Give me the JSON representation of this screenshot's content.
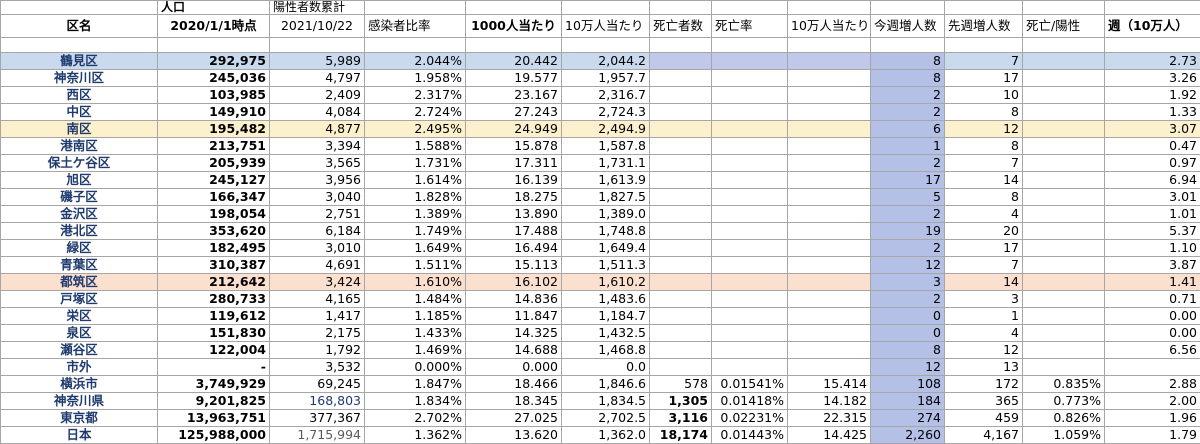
{
  "header_top": {
    "population": "人口",
    "positive": "陽性者数累計"
  },
  "header": {
    "ward": "区名",
    "pop_date": "2020/1/1時点",
    "pos_date": "2021/10/22",
    "rate": "感染者比率",
    "per1000": "1000人当たり",
    "per100k": "10万人当たり",
    "deaths": "死亡者数",
    "death_rate": "死亡率",
    "death_per100k": "10万人当たり",
    "this_week": "今週増人数",
    "last_week": "先週増人数",
    "death_pos": "死亡/陽性",
    "week_100k": "週（10万人）"
  },
  "rows": [
    {
      "name": "鶴見区",
      "pop": "292,975",
      "pos": "5,989",
      "rate": "2.044%",
      "p1000": "20.442",
      "p100k": "2,044.2",
      "deaths": "",
      "drate": "",
      "d100k": "",
      "tw": "8",
      "lw": "7",
      "dp": "",
      "w": "2.73"
    },
    {
      "name": "神奈川区",
      "pop": "245,036",
      "pos": "4,797",
      "rate": "1.958%",
      "p1000": "19.577",
      "p100k": "1,957.7",
      "deaths": "",
      "drate": "",
      "d100k": "",
      "tw": "8",
      "lw": "17",
      "dp": "",
      "w": "3.26"
    },
    {
      "name": "西区",
      "pop": "103,985",
      "pos": "2,409",
      "rate": "2.317%",
      "p1000": "23.167",
      "p100k": "2,316.7",
      "deaths": "",
      "drate": "",
      "d100k": "",
      "tw": "2",
      "lw": "10",
      "dp": "",
      "w": "1.92"
    },
    {
      "name": "中区",
      "pop": "149,910",
      "pos": "4,084",
      "rate": "2.724%",
      "p1000": "27.243",
      "p100k": "2,724.3",
      "deaths": "",
      "drate": "",
      "d100k": "",
      "tw": "2",
      "lw": "8",
      "dp": "",
      "w": "1.33"
    },
    {
      "name": "南区",
      "pop": "195,482",
      "pos": "4,877",
      "rate": "2.495%",
      "p1000": "24.949",
      "p100k": "2,494.9",
      "deaths": "",
      "drate": "",
      "d100k": "",
      "tw": "6",
      "lw": "12",
      "dp": "",
      "w": "3.07"
    },
    {
      "name": "港南区",
      "pop": "213,751",
      "pos": "3,394",
      "rate": "1.588%",
      "p1000": "15.878",
      "p100k": "1,587.8",
      "deaths": "",
      "drate": "",
      "d100k": "",
      "tw": "1",
      "lw": "8",
      "dp": "",
      "w": "0.47"
    },
    {
      "name": "保土ケ谷区",
      "pop": "205,939",
      "pos": "3,565",
      "rate": "1.731%",
      "p1000": "17.311",
      "p100k": "1,731.1",
      "deaths": "",
      "drate": "",
      "d100k": "",
      "tw": "2",
      "lw": "7",
      "dp": "",
      "w": "0.97"
    },
    {
      "name": "旭区",
      "pop": "245,127",
      "pos": "3,956",
      "rate": "1.614%",
      "p1000": "16.139",
      "p100k": "1,613.9",
      "deaths": "",
      "drate": "",
      "d100k": "",
      "tw": "17",
      "lw": "14",
      "dp": "",
      "w": "6.94"
    },
    {
      "name": "磯子区",
      "pop": "166,347",
      "pos": "3,040",
      "rate": "1.828%",
      "p1000": "18.275",
      "p100k": "1,827.5",
      "deaths": "",
      "drate": "",
      "d100k": "",
      "tw": "5",
      "lw": "8",
      "dp": "",
      "w": "3.01"
    },
    {
      "name": "金沢区",
      "pop": "198,054",
      "pos": "2,751",
      "rate": "1.389%",
      "p1000": "13.890",
      "p100k": "1,389.0",
      "deaths": "",
      "drate": "",
      "d100k": "",
      "tw": "2",
      "lw": "4",
      "dp": "",
      "w": "1.01"
    },
    {
      "name": "港北区",
      "pop": "353,620",
      "pos": "6,184",
      "rate": "1.749%",
      "p1000": "17.488",
      "p100k": "1,748.8",
      "deaths": "",
      "drate": "",
      "d100k": "",
      "tw": "19",
      "lw": "20",
      "dp": "",
      "w": "5.37"
    },
    {
      "name": "緑区",
      "pop": "182,495",
      "pos": "3,010",
      "rate": "1.649%",
      "p1000": "16.494",
      "p100k": "1,649.4",
      "deaths": "",
      "drate": "",
      "d100k": "",
      "tw": "2",
      "lw": "17",
      "dp": "",
      "w": "1.10"
    },
    {
      "name": "青葉区",
      "pop": "310,387",
      "pos": "4,691",
      "rate": "1.511%",
      "p1000": "15.113",
      "p100k": "1,511.3",
      "deaths": "",
      "drate": "",
      "d100k": "",
      "tw": "12",
      "lw": "7",
      "dp": "",
      "w": "3.87"
    },
    {
      "name": "都筑区",
      "pop": "212,642",
      "pos": "3,424",
      "rate": "1.610%",
      "p1000": "16.102",
      "p100k": "1,610.2",
      "deaths": "",
      "drate": "",
      "d100k": "",
      "tw": "3",
      "lw": "14",
      "dp": "",
      "w": "1.41"
    },
    {
      "name": "戸塚区",
      "pop": "280,733",
      "pos": "4,165",
      "rate": "1.484%",
      "p1000": "14.836",
      "p100k": "1,483.6",
      "deaths": "",
      "drate": "",
      "d100k": "",
      "tw": "2",
      "lw": "3",
      "dp": "",
      "w": "0.71"
    },
    {
      "name": "栄区",
      "pop": "119,612",
      "pos": "1,417",
      "rate": "1.185%",
      "p1000": "11.847",
      "p100k": "1,184.7",
      "deaths": "",
      "drate": "",
      "d100k": "",
      "tw": "0",
      "lw": "1",
      "dp": "",
      "w": "0.00"
    },
    {
      "name": "泉区",
      "pop": "151,830",
      "pos": "2,175",
      "rate": "1.433%",
      "p1000": "14.325",
      "p100k": "1,432.5",
      "deaths": "",
      "drate": "",
      "d100k": "",
      "tw": "0",
      "lw": "4",
      "dp": "",
      "w": "0.00"
    },
    {
      "name": "瀬谷区",
      "pop": "122,004",
      "pos": "1,792",
      "rate": "1.469%",
      "p1000": "14.688",
      "p100k": "1,468.8",
      "deaths": "",
      "drate": "",
      "d100k": "",
      "tw": "8",
      "lw": "12",
      "dp": "",
      "w": "6.56"
    },
    {
      "name": "市外",
      "pop": "-",
      "pos": "3,532",
      "rate": "0.000%",
      "p1000": "0.000",
      "p100k": "0.0",
      "deaths": "",
      "drate": "",
      "d100k": "",
      "tw": "12",
      "lw": "13",
      "dp": "",
      "w": ""
    },
    {
      "name": "横浜市",
      "pop": "3,749,929",
      "pos": "69,245",
      "rate": "1.847%",
      "p1000": "18.466",
      "p100k": "1,846.6",
      "deaths": "578",
      "drate": "0.01541%",
      "d100k": "15.414",
      "tw": "108",
      "lw": "172",
      "dp": "0.835%",
      "w": "2.88"
    },
    {
      "name": "神奈川県",
      "pop": "9,201,825",
      "pos": "168,803",
      "rate": "1.834%",
      "p1000": "18.345",
      "p100k": "1,834.5",
      "deaths": "1,305",
      "drate": "0.01418%",
      "d100k": "14.182",
      "tw": "184",
      "lw": "365",
      "dp": "0.773%",
      "w": "2.00"
    },
    {
      "name": "東京都",
      "pop": "13,963,751",
      "pos": "377,367",
      "rate": "2.702%",
      "p1000": "27.025",
      "p100k": "2,702.5",
      "deaths": "3,116",
      "drate": "0.02231%",
      "d100k": "22.315",
      "tw": "274",
      "lw": "459",
      "dp": "0.826%",
      "w": "1.96"
    },
    {
      "name": "日本",
      "pop": "125,988,000",
      "pos": "1,715,994",
      "rate": "1.362%",
      "p1000": "13.620",
      "p100k": "1,362.0",
      "deaths": "18,174",
      "drate": "0.01443%",
      "d100k": "14.425",
      "tw": "2,260",
      "lw": "4,167",
      "dp": "1.059%",
      "w": "1.79"
    }
  ],
  "highlight_colors": {
    "blue_row": "#c9d9ee",
    "yellow_row": "#fdf0cc",
    "pink_row": "#fbe0cf",
    "week_column": "#b4c0e6"
  }
}
